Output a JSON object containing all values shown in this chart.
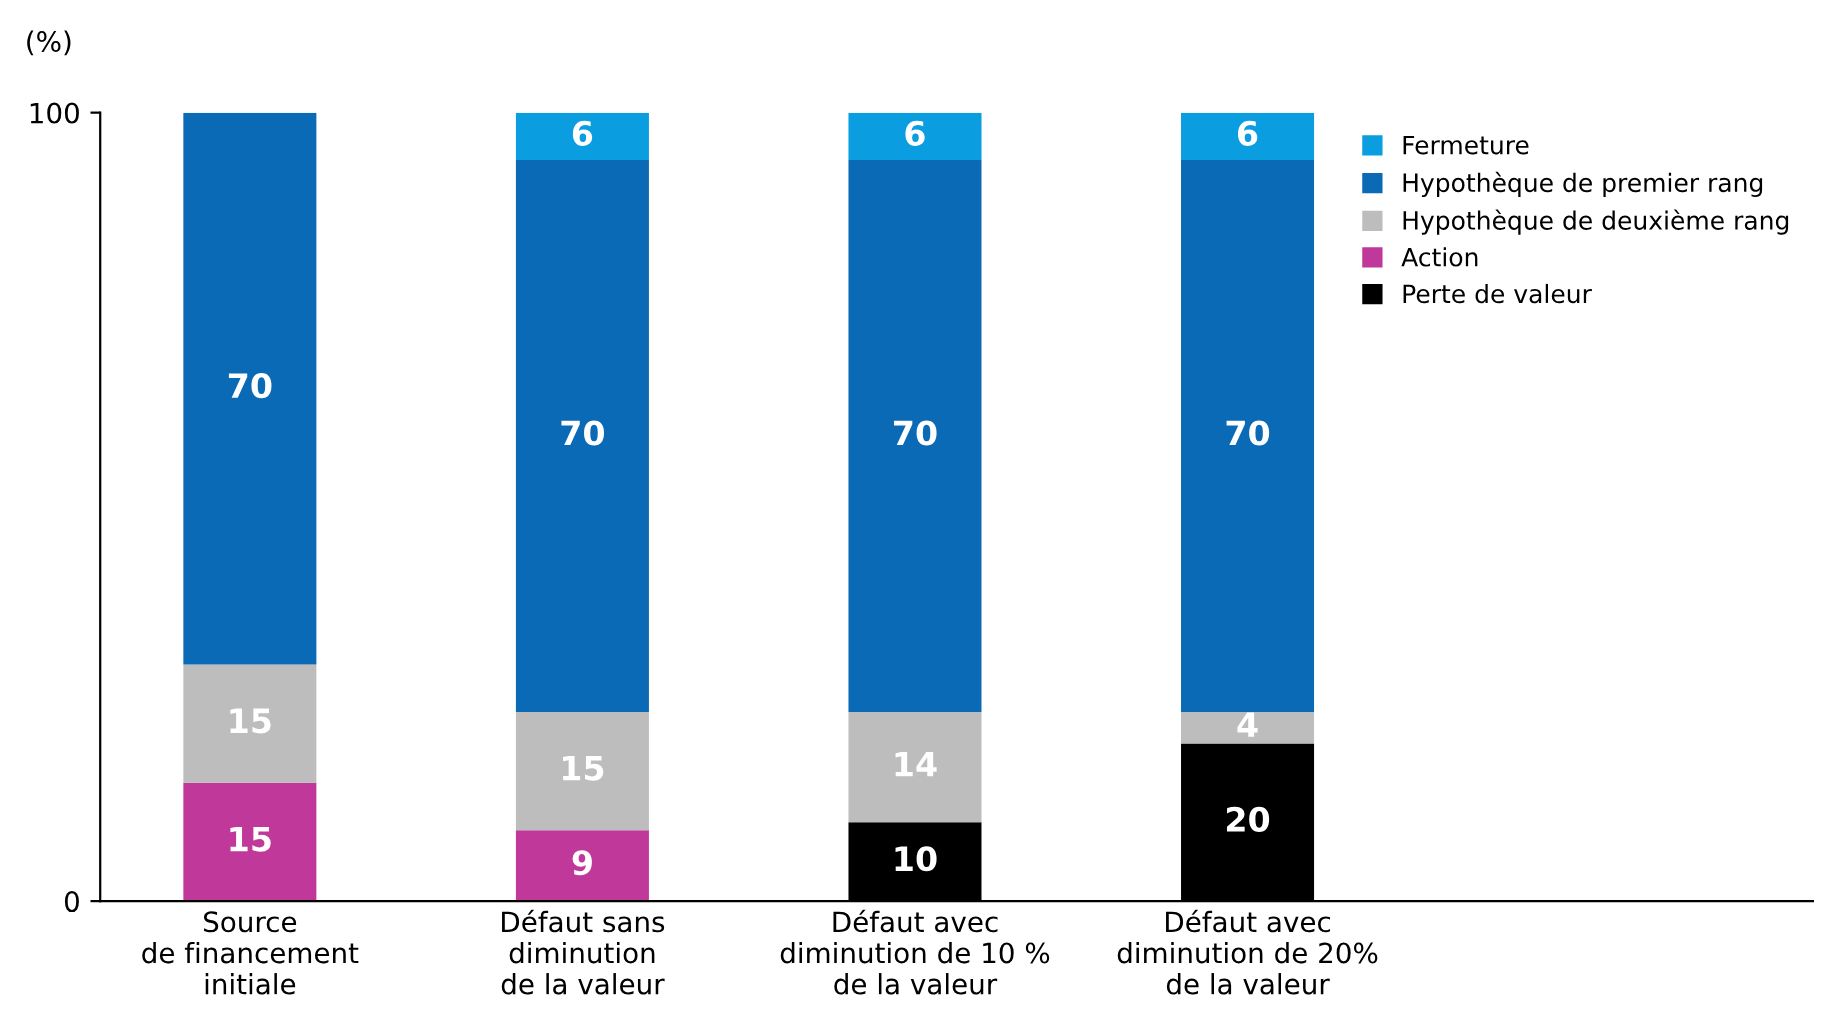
{
  "chart_data": {
    "type": "bar",
    "stacked": true,
    "ylabel": "(%)",
    "categories": [
      "Source\nde financement\ninitiale",
      "Défaut sans\ndiminution\nde la valeur",
      "Défaut avec\ndiminution de 10 %\nde la valeur",
      "Défaut avec\ndiminution de 20%\nde la valeur"
    ],
    "series": [
      {
        "name": "Perte de valeur",
        "color": "#000000",
        "values": [
          null,
          null,
          10,
          20
        ]
      },
      {
        "name": "Action",
        "color": "#c0399a",
        "values": [
          15,
          9,
          null,
          null
        ]
      },
      {
        "name": "Hypothèque de deuxième rang",
        "color": "#bdbdbd",
        "values": [
          15,
          15,
          14,
          4
        ]
      },
      {
        "name": "Hypothèque de premier rang",
        "color": "#0a6ab6",
        "values": [
          70,
          70,
          70,
          70
        ]
      },
      {
        "name": "Fermeture",
        "color": "#0a9ee0",
        "values": [
          null,
          6,
          6,
          6
        ]
      }
    ],
    "ylim": [
      0,
      100
    ],
    "yticks": [
      0,
      100
    ],
    "data_labels": true,
    "grid": false,
    "legend": "top right"
  }
}
